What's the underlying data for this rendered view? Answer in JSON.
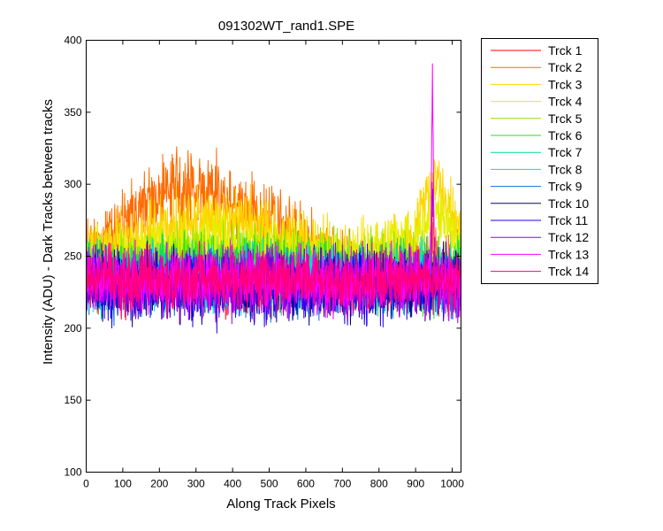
{
  "chart_data": {
    "type": "line",
    "title": "091302WT_rand1.SPE",
    "xlabel": "Along Track Pixels",
    "ylabel": "Intensity (ADU) - Dark Tracks between tracks",
    "xlim": [
      0,
      1024
    ],
    "ylim": [
      100,
      400
    ],
    "x_ticks": [
      0,
      100,
      200,
      300,
      400,
      500,
      600,
      700,
      800,
      900,
      1000
    ],
    "y_ticks": [
      100,
      150,
      200,
      250,
      300,
      350,
      400
    ],
    "grid": false,
    "legend_position": "outside-right",
    "x_points": 1024,
    "series": [
      {
        "name": "Trck 1",
        "color": "#ff0000",
        "baseline": [
          [
            0,
            235
          ],
          [
            1024,
            235
          ]
        ],
        "noise": 12
      },
      {
        "name": "Trck 2",
        "color": "#ff6a00",
        "baseline": [
          [
            0,
            248
          ],
          [
            60,
            262
          ],
          [
            120,
            278
          ],
          [
            200,
            292
          ],
          [
            260,
            298
          ],
          [
            320,
            296
          ],
          [
            380,
            290
          ],
          [
            440,
            282
          ],
          [
            500,
            274
          ],
          [
            560,
            268
          ],
          [
            620,
            252
          ],
          [
            700,
            243
          ],
          [
            800,
            240
          ],
          [
            880,
            240
          ],
          [
            1024,
            238
          ]
        ],
        "noise": 14,
        "peak": {
          "x": 948,
          "value": 268,
          "width": 8
        }
      },
      {
        "name": "Trck 3",
        "color": "#ffd400",
        "baseline": [
          [
            0,
            248
          ],
          [
            100,
            258
          ],
          [
            200,
            268
          ],
          [
            300,
            276
          ],
          [
            400,
            278
          ],
          [
            500,
            270
          ],
          [
            600,
            258
          ],
          [
            700,
            250
          ],
          [
            800,
            248
          ],
          [
            860,
            255
          ],
          [
            900,
            272
          ],
          [
            940,
            295
          ],
          [
            960,
            305
          ],
          [
            990,
            285
          ],
          [
            1024,
            262
          ]
        ],
        "noise": 12
      },
      {
        "name": "Trck 4",
        "color": "#e6ef00",
        "baseline": [
          [
            0,
            245
          ],
          [
            200,
            258
          ],
          [
            350,
            262
          ],
          [
            500,
            255
          ],
          [
            700,
            246
          ],
          [
            900,
            262
          ],
          [
            950,
            290
          ],
          [
            1024,
            255
          ]
        ],
        "noise": 11
      },
      {
        "name": "Trck 5",
        "color": "#8ce600",
        "baseline": [
          [
            0,
            240
          ],
          [
            300,
            246
          ],
          [
            600,
            242
          ],
          [
            900,
            244
          ],
          [
            1024,
            240
          ]
        ],
        "noise": 13
      },
      {
        "name": "Trck 6",
        "color": "#22e322",
        "baseline": [
          [
            0,
            237
          ],
          [
            300,
            240
          ],
          [
            600,
            238
          ],
          [
            1024,
            236
          ]
        ],
        "noise": 13
      },
      {
        "name": "Trck 7",
        "color": "#00dc8a",
        "baseline": [
          [
            0,
            236
          ],
          [
            1024,
            236
          ]
        ],
        "noise": 12
      },
      {
        "name": "Trck 8",
        "color": "#00e0e0",
        "baseline": [
          [
            0,
            234
          ],
          [
            1024,
            234
          ]
        ],
        "noise": 12
      },
      {
        "name": "Trck 9",
        "color": "#0077ee",
        "baseline": [
          [
            0,
            232
          ],
          [
            1024,
            232
          ]
        ],
        "noise": 12
      },
      {
        "name": "Trck 10",
        "color": "#000080",
        "baseline": [
          [
            0,
            230
          ],
          [
            1024,
            230
          ]
        ],
        "noise": 12
      },
      {
        "name": "Trck 11",
        "color": "#2200ee",
        "baseline": [
          [
            0,
            229
          ],
          [
            1024,
            230
          ]
        ],
        "noise": 13
      },
      {
        "name": "Trck 12",
        "color": "#9900dd",
        "baseline": [
          [
            0,
            232
          ],
          [
            1024,
            232
          ]
        ],
        "noise": 12,
        "peak": {
          "x": 947,
          "value": 300,
          "width": 5
        }
      },
      {
        "name": "Trck 13",
        "color": "#ff00ff",
        "baseline": [
          [
            0,
            233
          ],
          [
            1024,
            233
          ]
        ],
        "noise": 12,
        "peak": {
          "x": 946,
          "value": 378,
          "width": 3
        }
      },
      {
        "name": "Trck 14",
        "color": "#ff007f",
        "baseline": [
          [
            0,
            234
          ],
          [
            1024,
            234
          ]
        ],
        "noise": 11
      }
    ]
  }
}
